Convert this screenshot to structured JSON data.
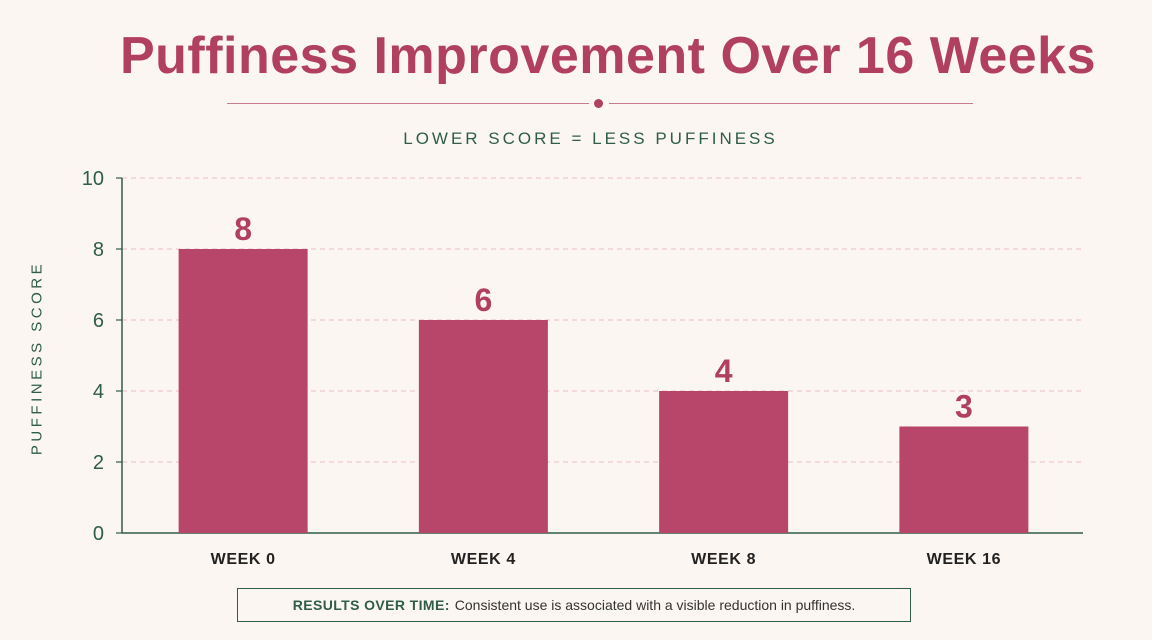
{
  "chart_data": {
    "type": "bar",
    "title": "Puffiness Improvement Over 16 Weeks",
    "subtitle": "LOWER SCORE = LESS PUFFINESS",
    "ylabel": "PUFFINESS SCORE",
    "xlabel": "",
    "categories": [
      "WEEK 0",
      "WEEK 4",
      "WEEK 8",
      "WEEK 16"
    ],
    "values": [
      8,
      6,
      4,
      3
    ],
    "ylim": [
      0,
      10
    ],
    "yticks": [
      0,
      2,
      4,
      6,
      8,
      10
    ],
    "grid": true,
    "bar_color": "#b8456a",
    "label_color": "#b03f62",
    "axis_color": "#2f5d47"
  },
  "callout": {
    "lead": "RESULTS OVER TIME:",
    "text": "Consistent use is associated with a visible reduction in puffiness."
  }
}
